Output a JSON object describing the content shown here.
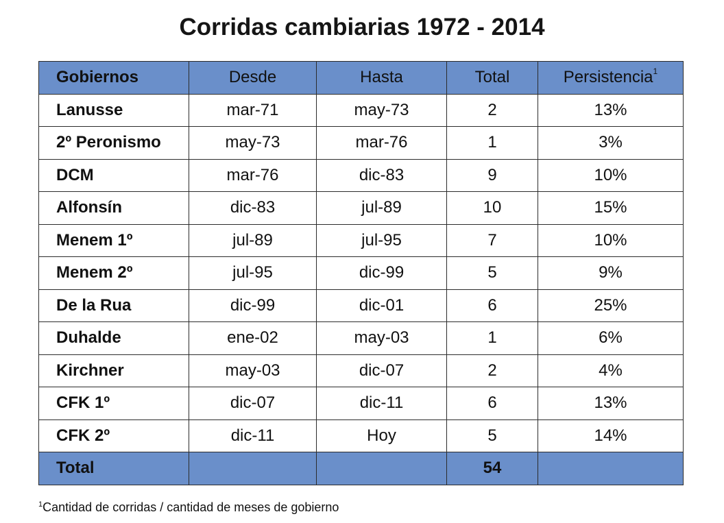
{
  "title": "Corridas cambiarias 1972 - 2014",
  "table": {
    "headers": [
      "Gobiernos",
      "Desde",
      "Hasta",
      "Total",
      "Persistencia"
    ],
    "persistencia_marker": "1",
    "rows": [
      [
        "Lanusse",
        "mar-71",
        "may-73",
        "2",
        "13%"
      ],
      [
        "2º Peronismo",
        "may-73",
        "mar-76",
        "1",
        "3%"
      ],
      [
        "DCM",
        "mar-76",
        "dic-83",
        "9",
        "10%"
      ],
      [
        "Alfonsín",
        "dic-83",
        "jul-89",
        "10",
        "15%"
      ],
      [
        "Menem 1º",
        "jul-89",
        "jul-95",
        "7",
        "10%"
      ],
      [
        "Menem 2º",
        "jul-95",
        "dic-99",
        "5",
        "9%"
      ],
      [
        "De la Rua",
        "dic-99",
        "dic-01",
        "6",
        "25%"
      ],
      [
        "Duhalde",
        "ene-02",
        "may-03",
        "1",
        "6%"
      ],
      [
        "Kirchner",
        "may-03",
        "dic-07",
        "2",
        "4%"
      ],
      [
        "CFK 1º",
        "dic-07",
        "dic-11",
        "6",
        "13%"
      ],
      [
        "CFK 2º",
        "dic-11",
        "Hoy",
        "5",
        "14%"
      ]
    ],
    "total_row": [
      "Total",
      "",
      "",
      "54",
      ""
    ]
  },
  "footnote": {
    "marker": "1",
    "text": "Cantidad de corridas / cantidad de meses de gobierno"
  },
  "colors": {
    "header_bg": "#6a8fca",
    "border": "#2b2b2b"
  }
}
